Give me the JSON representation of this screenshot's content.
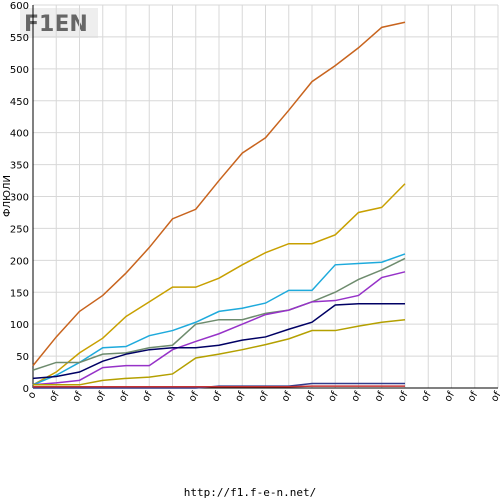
{
  "chart_data": {
    "type": "line",
    "logo": "F1EN",
    "y_label": "ФЛЮЛИ",
    "footer": "http://f1.f-e-n.net/",
    "categories": [
      "o",
      "of",
      "of",
      "of",
      "of",
      "of",
      "of",
      "of",
      "of",
      "of",
      "of",
      "of",
      "of",
      "of",
      "of",
      "of",
      "of",
      "of",
      "of",
      "of",
      "of"
    ],
    "ylim": [
      0,
      600
    ],
    "yticks": [
      0,
      50,
      100,
      150,
      200,
      250,
      300,
      350,
      400,
      450,
      500,
      550,
      600
    ],
    "grid": true,
    "series": [
      {
        "color": "#c8641e",
        "values": [
          35,
          80,
          120,
          145,
          180,
          220,
          265,
          280,
          325,
          368,
          392,
          435,
          480,
          505,
          533,
          565,
          573,
          null,
          null,
          null,
          null
        ]
      },
      {
        "color": "#c8a000",
        "values": [
          5,
          25,
          55,
          78,
          112,
          135,
          158,
          158,
          172,
          193,
          212,
          226,
          226,
          240,
          275,
          283,
          320,
          null,
          null,
          null,
          null
        ]
      },
      {
        "color": "#1eaadc",
        "values": [
          5,
          20,
          40,
          63,
          65,
          82,
          90,
          103,
          120,
          125,
          133,
          153,
          153,
          193,
          195,
          197,
          210,
          null,
          null,
          null,
          null
        ]
      },
      {
        "color": "#6e8c6e",
        "values": [
          28,
          40,
          40,
          53,
          55,
          63,
          67,
          100,
          107,
          107,
          117,
          122,
          135,
          150,
          170,
          185,
          203,
          null,
          null,
          null,
          null
        ]
      },
      {
        "color": "#9632c8",
        "values": [
          5,
          8,
          12,
          32,
          35,
          35,
          60,
          73,
          85,
          100,
          115,
          122,
          135,
          137,
          145,
          173,
          182,
          null,
          null,
          null,
          null
        ]
      },
      {
        "color": "#000064",
        "values": [
          15,
          18,
          25,
          42,
          53,
          60,
          63,
          63,
          67,
          75,
          80,
          92,
          103,
          130,
          132,
          132,
          132,
          null,
          null,
          null,
          null
        ]
      },
      {
        "color": "#b4a000",
        "values": [
          5,
          5,
          5,
          12,
          15,
          17,
          22,
          47,
          53,
          60,
          68,
          77,
          90,
          90,
          97,
          103,
          107,
          null,
          null,
          null,
          null
        ]
      },
      {
        "color": "#323c8c",
        "values": [
          0,
          0,
          0,
          0,
          0,
          0,
          0,
          0,
          3,
          3,
          3,
          3,
          7,
          7,
          7,
          7,
          7,
          null,
          null,
          null,
          null
        ]
      },
      {
        "color": "#c83232",
        "values": [
          2,
          2,
          2,
          2,
          2,
          2,
          2,
          2,
          2,
          2,
          2,
          2,
          3,
          3,
          3,
          3,
          3,
          null,
          null,
          null,
          null
        ]
      }
    ]
  }
}
